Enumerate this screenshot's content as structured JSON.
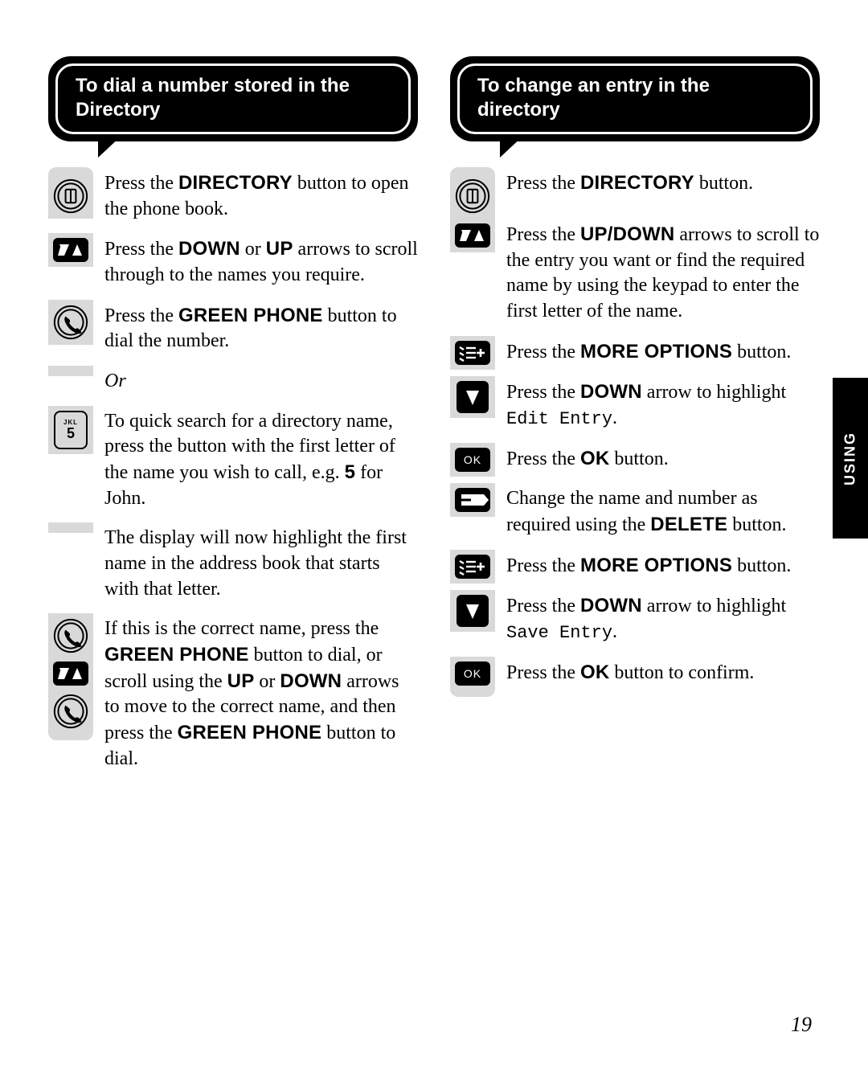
{
  "side_tab": "USING",
  "page_number": "19",
  "left": {
    "title": "To dial a number stored in the Directory",
    "steps": [
      {
        "icons": [
          "directory"
        ],
        "html": "Press the <strong>DIRECTORY</strong> button to open the phone book."
      },
      {
        "icons": [
          "updown"
        ],
        "html": "Press the <strong>DOWN</strong> or <strong>UP</strong> arrows to scroll through to the names you require."
      },
      {
        "icons": [
          "handset"
        ],
        "html": "Press the <strong>GREEN PHONE</strong> button to dial the number."
      },
      {
        "icons": [],
        "html": "<em>Or</em>"
      },
      {
        "icons": [
          "key5"
        ],
        "html": "To quick search for a directory name, press the button with the first letter of the name you wish to call, e.g. <strong>5</strong> for John."
      },
      {
        "icons": [],
        "html": "The display will now highlight the first name in the address book that starts with that letter."
      },
      {
        "icons": [
          "handset",
          "updown",
          "handset"
        ],
        "html": "If this is the correct name, press the <strong>GREEN PHONE</strong> button to dial, or scroll using the <strong>UP</strong> or <strong>DOWN</strong> arrows to move to the correct name, and then press the <strong>GREEN PHONE</strong> button to dial."
      }
    ]
  },
  "right": {
    "title": "To change an entry in the directory",
    "steps": [
      {
        "icons": [
          "directory"
        ],
        "html": "Press the <strong>DIRECTORY</strong> button."
      },
      {
        "icons": [
          "updown"
        ],
        "html": "Press the <strong>UP/DOWN</strong> arrows to scroll to the entry you want or find the required name by using the keypad to enter the first letter of the name."
      },
      {
        "icons": [
          "more"
        ],
        "html": "Press the <strong>MORE OPTIONS</strong> button."
      },
      {
        "icons": [
          "down"
        ],
        "html": "Press the <strong>DOWN</strong> arrow to highlight <code>Edit Entry</code>."
      },
      {
        "icons": [
          "ok"
        ],
        "html": "Press the <strong>OK</strong> button."
      },
      {
        "icons": [
          "delete"
        ],
        "html": "Change the name and number as required using the <strong>DELETE</strong> button."
      },
      {
        "icons": [
          "more"
        ],
        "html": "Press the <strong>MORE OPTIONS</strong> button."
      },
      {
        "icons": [
          "down"
        ],
        "html": "Press the <strong>DOWN</strong> arrow to highlight <code>Save Entry</code>."
      },
      {
        "icons": [
          "ok"
        ],
        "html": "Press the <strong>OK</strong> button to confirm."
      }
    ]
  },
  "colors": {
    "grey_strip": "#d9d9d9",
    "black": "#000000",
    "white": "#ffffff"
  }
}
